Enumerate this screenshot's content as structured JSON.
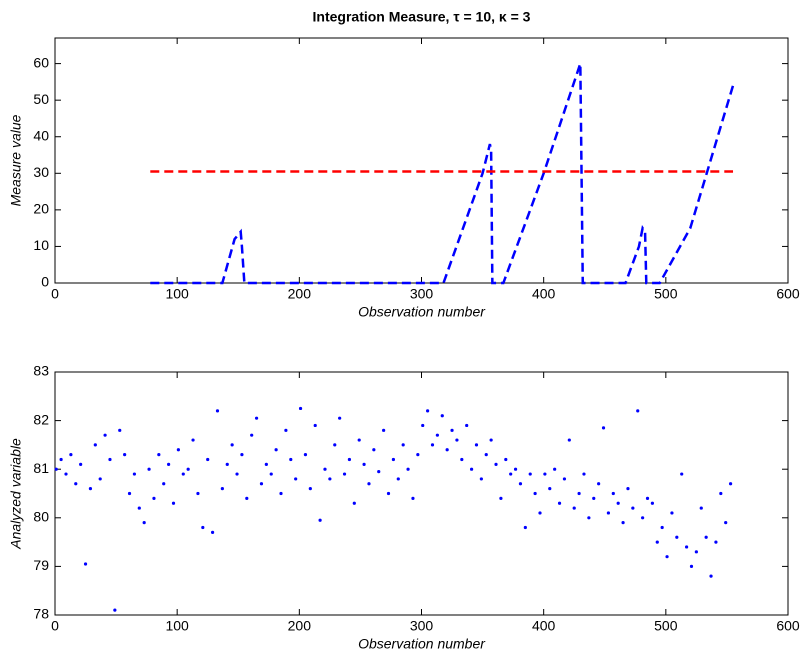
{
  "chart_data": [
    {
      "type": "line",
      "title": "Integration Measure, τ = 10, κ = 3",
      "xlabel": "Observation number",
      "ylabel": "Measure value",
      "x": [
        78,
        137,
        147,
        152,
        153,
        155,
        318,
        350,
        356,
        357,
        358,
        367,
        400,
        430,
        431,
        432,
        467,
        478,
        481,
        483,
        484,
        495,
        520,
        555
      ],
      "series": [
        {
          "color": "#0000ff",
          "line_style": "dashed",
          "values": [
            0,
            0,
            12,
            14,
            10,
            0,
            0,
            30,
            38,
            36,
            0,
            0,
            30,
            60,
            30,
            0,
            0,
            10,
            15,
            14,
            0,
            0,
            15,
            54
          ]
        },
        {
          "color": "#ff0000",
          "line_style": "dashed",
          "values": [
            30.5,
            30.5,
            30.5,
            30.5,
            30.5,
            30.5,
            30.5,
            30.5,
            30.5,
            30.5,
            30.5,
            30.5,
            30.5,
            30.5,
            30.5,
            30.5,
            30.5,
            30.5,
            30.5,
            30.5,
            30.5,
            30.5,
            30.5,
            30.5
          ]
        }
      ],
      "xlim": [
        0,
        600
      ],
      "xticks": [
        0,
        100,
        200,
        300,
        400,
        500,
        600
      ],
      "ylim": [
        0,
        67
      ],
      "yticks": [
        0,
        10,
        20,
        30,
        40,
        50,
        60
      ]
    },
    {
      "type": "scatter",
      "xlabel": "Observation number",
      "ylabel": "Analyzed variable",
      "color": "#0000ff",
      "x": [
        1,
        5,
        9,
        13,
        17,
        21,
        25,
        29,
        33,
        37,
        41,
        45,
        49,
        53,
        57,
        61,
        65,
        69,
        73,
        77,
        81,
        85,
        89,
        93,
        97,
        101,
        105,
        109,
        113,
        117,
        121,
        125,
        129,
        133,
        137,
        141,
        145,
        149,
        153,
        157,
        161,
        165,
        169,
        173,
        177,
        181,
        185,
        189,
        193,
        197,
        201,
        205,
        209,
        213,
        217,
        221,
        225,
        229,
        233,
        237,
        241,
        245,
        249,
        253,
        257,
        261,
        265,
        269,
        273,
        277,
        281,
        285,
        289,
        293,
        297,
        301,
        305,
        309,
        313,
        317,
        321,
        325,
        329,
        333,
        337,
        341,
        345,
        349,
        353,
        357,
        361,
        365,
        369,
        373,
        377,
        381,
        385,
        389,
        393,
        397,
        401,
        405,
        409,
        413,
        417,
        421,
        425,
        429,
        433,
        437,
        441,
        445,
        449,
        453,
        457,
        461,
        465,
        469,
        473,
        477,
        481,
        485,
        489,
        493,
        497,
        501,
        505,
        509,
        513,
        517,
        521,
        525,
        529,
        533,
        537,
        541,
        545,
        549,
        553
      ],
      "values": [
        81.0,
        81.2,
        80.9,
        81.3,
        80.7,
        81.1,
        79.05,
        80.6,
        81.5,
        80.8,
        81.7,
        81.2,
        78.1,
        81.8,
        81.3,
        80.5,
        80.9,
        80.2,
        79.9,
        81.0,
        80.4,
        81.3,
        80.7,
        81.1,
        80.3,
        81.4,
        80.9,
        81.0,
        81.6,
        80.5,
        79.8,
        81.2,
        79.7,
        82.2,
        80.6,
        81.1,
        81.5,
        80.9,
        81.3,
        80.4,
        81.7,
        82.05,
        80.7,
        81.1,
        80.9,
        81.4,
        80.5,
        81.8,
        81.2,
        80.8,
        82.25,
        81.3,
        80.6,
        81.9,
        79.95,
        81.0,
        80.8,
        81.5,
        82.05,
        80.9,
        81.2,
        80.3,
        81.6,
        81.1,
        80.7,
        81.4,
        80.95,
        81.8,
        80.5,
        81.2,
        80.8,
        81.5,
        81.0,
        80.4,
        81.3,
        81.9,
        82.2,
        81.5,
        81.7,
        82.1,
        81.4,
        81.8,
        81.6,
        81.2,
        81.9,
        81.0,
        81.5,
        80.8,
        81.3,
        81.6,
        81.1,
        80.4,
        81.2,
        80.9,
        81.0,
        80.7,
        79.8,
        80.9,
        80.5,
        80.1,
        80.9,
        80.6,
        81.0,
        80.3,
        80.8,
        81.6,
        80.2,
        80.5,
        80.9,
        80.0,
        80.4,
        80.7,
        81.85,
        80.1,
        80.5,
        80.3,
        79.9,
        80.6,
        80.2,
        82.2,
        80.0,
        80.4,
        80.3,
        79.5,
        79.8,
        79.2,
        80.1,
        79.6,
        80.9,
        79.4,
        79.0,
        79.3,
        80.2,
        79.6,
        78.8,
        79.5,
        80.5,
        79.9,
        80.7
      ],
      "xlim": [
        0,
        600
      ],
      "xticks": [
        0,
        100,
        200,
        300,
        400,
        500,
        600
      ],
      "ylim": [
        78,
        83
      ],
      "yticks": [
        78,
        79,
        80,
        81,
        82,
        83
      ]
    }
  ]
}
